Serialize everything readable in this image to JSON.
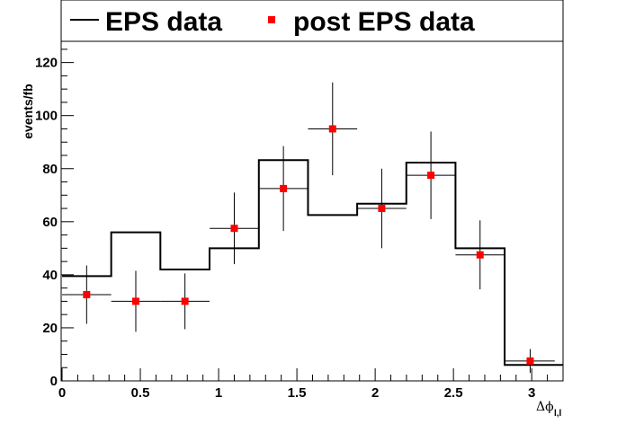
{
  "chart_data": {
    "type": "line",
    "xlabel": "Δϕ",
    "xlabel_sub": "l,l",
    "ylabel": "events/fb",
    "xlim": [
      0,
      3.2
    ],
    "ylim": [
      0,
      128
    ],
    "x_ticks": [
      0,
      0.5,
      1,
      1.5,
      2,
      2.5,
      3
    ],
    "x_tick_labels": [
      "0",
      "0.5",
      "1",
      "1.5",
      "2",
      "2.5",
      "3"
    ],
    "y_ticks": [
      0,
      20,
      40,
      60,
      80,
      100,
      120
    ],
    "y_tick_labels": [
      "0",
      "20",
      "40",
      "60",
      "80",
      "100",
      "120"
    ],
    "legend": [
      "EPS data",
      "post EPS data"
    ],
    "series": [
      {
        "name": "EPS data",
        "kind": "histogram",
        "color": "#000000",
        "bin_edges": [
          0,
          0.314,
          0.628,
          0.942,
          1.257,
          1.571,
          1.885,
          2.199,
          2.513,
          2.827,
          3.2
        ],
        "values": [
          39.5,
          56,
          42,
          50,
          83.2,
          62.5,
          66.8,
          82.3,
          50,
          6
        ]
      },
      {
        "name": "post EPS data",
        "kind": "points_with_errors",
        "color": "#ff0000",
        "x": [
          0.157,
          0.471,
          0.785,
          1.1,
          1.414,
          1.728,
          2.042,
          2.356,
          2.67,
          2.99
        ],
        "xerr": [
          0.157,
          0.157,
          0.157,
          0.157,
          0.157,
          0.157,
          0.157,
          0.157,
          0.157,
          0.157
        ],
        "y": [
          32.5,
          30,
          30,
          57.5,
          72.5,
          95,
          65,
          77.5,
          47.5,
          7.5
        ],
        "yerr": [
          11,
          11.5,
          10.5,
          13.5,
          16,
          17.5,
          15,
          16.5,
          13,
          4.5
        ]
      }
    ]
  }
}
